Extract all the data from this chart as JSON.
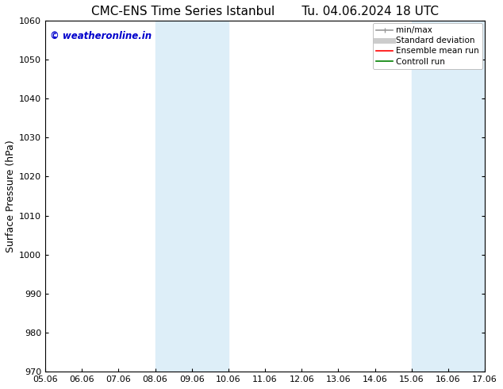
{
  "title_left": "CMC-ENS Time Series Istanbul",
  "title_right": "Tu. 04.06.2024 18 UTC",
  "ylabel": "Surface Pressure (hPa)",
  "ylim": [
    970,
    1060
  ],
  "yticks": [
    970,
    980,
    990,
    1000,
    1010,
    1020,
    1030,
    1040,
    1050,
    1060
  ],
  "xlim_start": 0,
  "xlim_end": 12,
  "xtick_labels": [
    "05.06",
    "06.06",
    "07.06",
    "08.06",
    "09.06",
    "10.06",
    "11.06",
    "12.06",
    "13.06",
    "14.06",
    "15.06",
    "16.06",
    "17.06"
  ],
  "shaded_regions": [
    {
      "x_start": 3,
      "x_end": 4,
      "color": "#ddeef8"
    },
    {
      "x_start": 4,
      "x_end": 5,
      "color": "#ddeef8"
    },
    {
      "x_start": 10,
      "x_end": 11,
      "color": "#ddeef8"
    },
    {
      "x_start": 11,
      "x_end": 12,
      "color": "#ddeef8"
    }
  ],
  "watermark_text": "© weatheronline.in",
  "watermark_color": "#0000cc",
  "background_color": "#ffffff",
  "plot_bg_color": "#ffffff",
  "legend_items": [
    {
      "label": "min/max",
      "color": "#999999"
    },
    {
      "label": "Standard deviation",
      "color": "#bbbbbb"
    },
    {
      "label": "Ensemble mean run",
      "color": "#ff0000"
    },
    {
      "label": "Controll run",
      "color": "#008000"
    }
  ],
  "title_fontsize": 11,
  "axis_label_fontsize": 9,
  "tick_fontsize": 8,
  "legend_fontsize": 7.5
}
